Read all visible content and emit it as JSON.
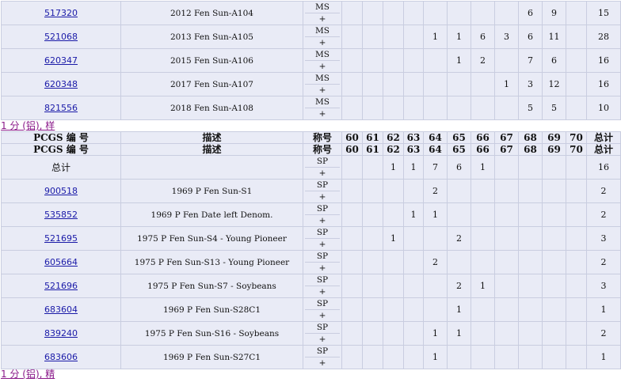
{
  "grade_columns": [
    "60",
    "61",
    "62",
    "63",
    "64",
    "65",
    "66",
    "67",
    "68",
    "69",
    "70"
  ],
  "table1": {
    "rows": [
      {
        "pcgs": "517320",
        "desc": "2012 Fen Sun-A104",
        "grade": "MS",
        "plus": "+",
        "counts": [
          null,
          null,
          null,
          null,
          null,
          null,
          null,
          null,
          "6",
          "9",
          null
        ],
        "total": "15"
      },
      {
        "pcgs": "521068",
        "desc": "2013 Fen Sun-A105",
        "grade": "MS",
        "plus": "+",
        "counts": [
          null,
          null,
          null,
          null,
          "1",
          "1",
          "6",
          "3",
          "6",
          "11",
          null
        ],
        "total": "28"
      },
      {
        "pcgs": "620347",
        "desc": "2015 Fen Sun-A106",
        "grade": "MS",
        "plus": "+",
        "counts": [
          null,
          null,
          null,
          null,
          null,
          "1",
          "2",
          null,
          "7",
          "6",
          null
        ],
        "total": "16"
      },
      {
        "pcgs": "620348",
        "desc": "2017 Fen Sun-A107",
        "grade": "MS",
        "plus": "+",
        "counts": [
          null,
          null,
          null,
          null,
          null,
          null,
          null,
          "1",
          "3",
          "12",
          null
        ],
        "total": "16"
      },
      {
        "pcgs": "821556",
        "desc": "2018 Fen Sun-A108",
        "grade": "MS",
        "plus": "+",
        "counts": [
          null,
          null,
          null,
          null,
          null,
          null,
          null,
          null,
          "5",
          "5",
          null
        ],
        "total": "10"
      }
    ]
  },
  "section2_caption": "1 分 (铝), 样",
  "table2": {
    "header": {
      "pcgs": "PCGS 编 号",
      "desc": "描述",
      "grade": "称号",
      "total": "总计"
    },
    "rows": [
      {
        "pcgs": "总计",
        "is_total": true,
        "desc": "",
        "grade": "SP",
        "plus": "+",
        "counts": [
          null,
          null,
          "1",
          "1",
          "7",
          "6",
          "1",
          null,
          null,
          null,
          null
        ],
        "total": "16"
      },
      {
        "pcgs": "900518",
        "desc": "1969 P Fen Sun-S1",
        "grade": "SP",
        "plus": "+",
        "counts": [
          null,
          null,
          null,
          null,
          "2",
          null,
          null,
          null,
          null,
          null,
          null
        ],
        "total": "2"
      },
      {
        "pcgs": "535852",
        "desc": "1969 P Fen Date left Denom.",
        "grade": "SP",
        "plus": "+",
        "counts": [
          null,
          null,
          null,
          "1",
          "1",
          null,
          null,
          null,
          null,
          null,
          null
        ],
        "total": "2"
      },
      {
        "pcgs": "521695",
        "desc": "1975 P Fen Sun-S4 - Young Pioneer",
        "grade": "SP",
        "plus": "+",
        "counts": [
          null,
          null,
          "1",
          null,
          null,
          "2",
          null,
          null,
          null,
          null,
          null
        ],
        "total": "3"
      },
      {
        "pcgs": "605664",
        "desc": "1975 P Fen Sun-S13 - Young Pioneer",
        "grade": "SP",
        "plus": "+",
        "counts": [
          null,
          null,
          null,
          null,
          "2",
          null,
          null,
          null,
          null,
          null,
          null
        ],
        "total": "2"
      },
      {
        "pcgs": "521696",
        "desc": "1975 P Fen Sun-S7 - Soybeans",
        "grade": "SP",
        "plus": "+",
        "counts": [
          null,
          null,
          null,
          null,
          null,
          "2",
          "1",
          null,
          null,
          null,
          null
        ],
        "total": "3"
      },
      {
        "pcgs": "683604",
        "desc": "1969 P Fen Sun-S28C1",
        "grade": "SP",
        "plus": "+",
        "counts": [
          null,
          null,
          null,
          null,
          null,
          "1",
          null,
          null,
          null,
          null,
          null
        ],
        "total": "1"
      },
      {
        "pcgs": "839240",
        "desc": "1975 P Fen Sun-S16 - Soybeans",
        "grade": "SP",
        "plus": "+",
        "counts": [
          null,
          null,
          null,
          null,
          "1",
          "1",
          null,
          null,
          null,
          null,
          null
        ],
        "total": "2"
      },
      {
        "pcgs": "683606",
        "desc": "1969 P Fen Sun-S27C1",
        "grade": "SP",
        "plus": "+",
        "counts": [
          null,
          null,
          null,
          null,
          "1",
          null,
          null,
          null,
          null,
          null,
          null
        ],
        "total": "1"
      }
    ]
  },
  "section3_caption": "1 分 (铝), 精"
}
